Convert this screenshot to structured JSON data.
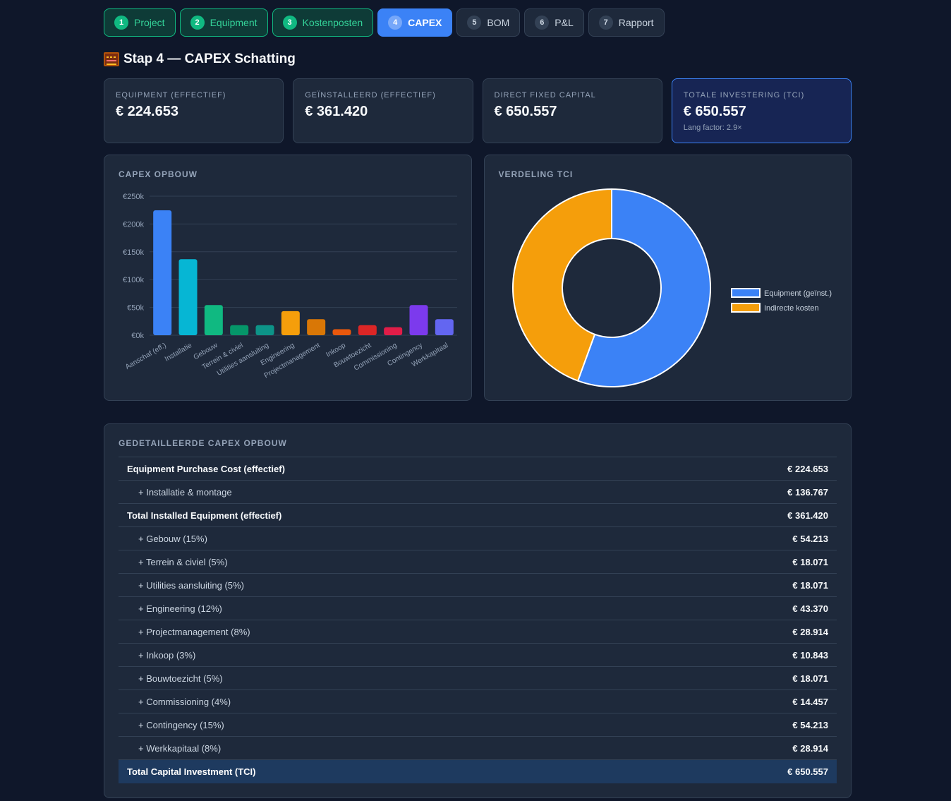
{
  "steps": [
    {
      "num": "1",
      "label": "Project",
      "state": "done"
    },
    {
      "num": "2",
      "label": "Equipment",
      "state": "done"
    },
    {
      "num": "3",
      "label": "Kostenposten",
      "state": "done"
    },
    {
      "num": "4",
      "label": "CAPEX",
      "state": "active"
    },
    {
      "num": "5",
      "label": "BOM",
      "state": "todo"
    },
    {
      "num": "6",
      "label": "P&L",
      "state": "todo"
    },
    {
      "num": "7",
      "label": "Rapport",
      "state": "todo"
    }
  ],
  "page_title": "Stap 4 — CAPEX Schatting",
  "kpis": [
    {
      "label": "Equipment (effectief)",
      "value": "€ 224.653",
      "sub": ""
    },
    {
      "label": "Geïnstalleerd (effectief)",
      "value": "€ 361.420",
      "sub": ""
    },
    {
      "label": "Direct Fixed Capital",
      "value": "€ 650.557",
      "sub": ""
    },
    {
      "label": "Totale Investering (TCI)",
      "value": "€ 650.557",
      "sub": "Lang factor: 2.9×"
    }
  ],
  "chart_data": [
    {
      "type": "bar",
      "title": "CAPEX OPBOUW",
      "categories": [
        "Aanschaf (eff.)",
        "Installatie",
        "Gebouw",
        "Terrein & civiel",
        "Utilities aansluiting",
        "Engineering",
        "Projectmanagement",
        "Inkoop",
        "Bouwtoezicht",
        "Commissioning",
        "Contingency",
        "Werkkapitaal"
      ],
      "values": [
        224653,
        136767,
        54213,
        18071,
        18071,
        43370,
        28914,
        10843,
        18071,
        14457,
        54213,
        28914
      ],
      "colors": [
        "#3b82f6",
        "#06b6d4",
        "#10b981",
        "#059669",
        "#0d9488",
        "#f59e0b",
        "#d97706",
        "#ea580c",
        "#dc2626",
        "#e11d48",
        "#7c3aed",
        "#6366f1"
      ],
      "yticks": [
        "€0k",
        "€50k",
        "€100k",
        "€150k",
        "€200k",
        "€250k"
      ],
      "ylim": [
        0,
        250000
      ],
      "grid": true
    },
    {
      "type": "pie",
      "title": "VERDELING TCI",
      "labels": [
        "Equipment (geïnst.)",
        "Indirecte kosten"
      ],
      "values": [
        361420,
        289137
      ],
      "colors": [
        "#3b82f6",
        "#f59e0b"
      ],
      "legend": "right"
    }
  ],
  "table": {
    "title": "GEDETAILLEERDE CAPEX OPBOUW",
    "rows": [
      {
        "name": "Equipment Purchase Cost (effectief)",
        "amount": "€ 224.653",
        "style": "bold"
      },
      {
        "name": "+ Installatie & montage",
        "amount": "€ 136.767",
        "style": "sub"
      },
      {
        "name": "Total Installed Equipment (effectief)",
        "amount": "€ 361.420",
        "style": "bold"
      },
      {
        "name": "+ Gebouw (15%)",
        "amount": "€ 54.213",
        "style": "sub"
      },
      {
        "name": "+ Terrein & civiel (5%)",
        "amount": "€ 18.071",
        "style": "sub"
      },
      {
        "name": "+ Utilities aansluiting (5%)",
        "amount": "€ 18.071",
        "style": "sub"
      },
      {
        "name": "+ Engineering (12%)",
        "amount": "€ 43.370",
        "style": "sub"
      },
      {
        "name": "+ Projectmanagement (8%)",
        "amount": "€ 28.914",
        "style": "sub"
      },
      {
        "name": "+ Inkoop (3%)",
        "amount": "€ 10.843",
        "style": "sub"
      },
      {
        "name": "+ Bouwtoezicht (5%)",
        "amount": "€ 18.071",
        "style": "sub"
      },
      {
        "name": "+ Commissioning (4%)",
        "amount": "€ 14.457",
        "style": "sub"
      },
      {
        "name": "+ Contingency (15%)",
        "amount": "€ 54.213",
        "style": "sub"
      },
      {
        "name": "+ Werkkapitaal (8%)",
        "amount": "€ 28.914",
        "style": "sub"
      },
      {
        "name": "Total Capital Investment (TCI)",
        "amount": "€ 650.557",
        "style": "total"
      }
    ]
  }
}
